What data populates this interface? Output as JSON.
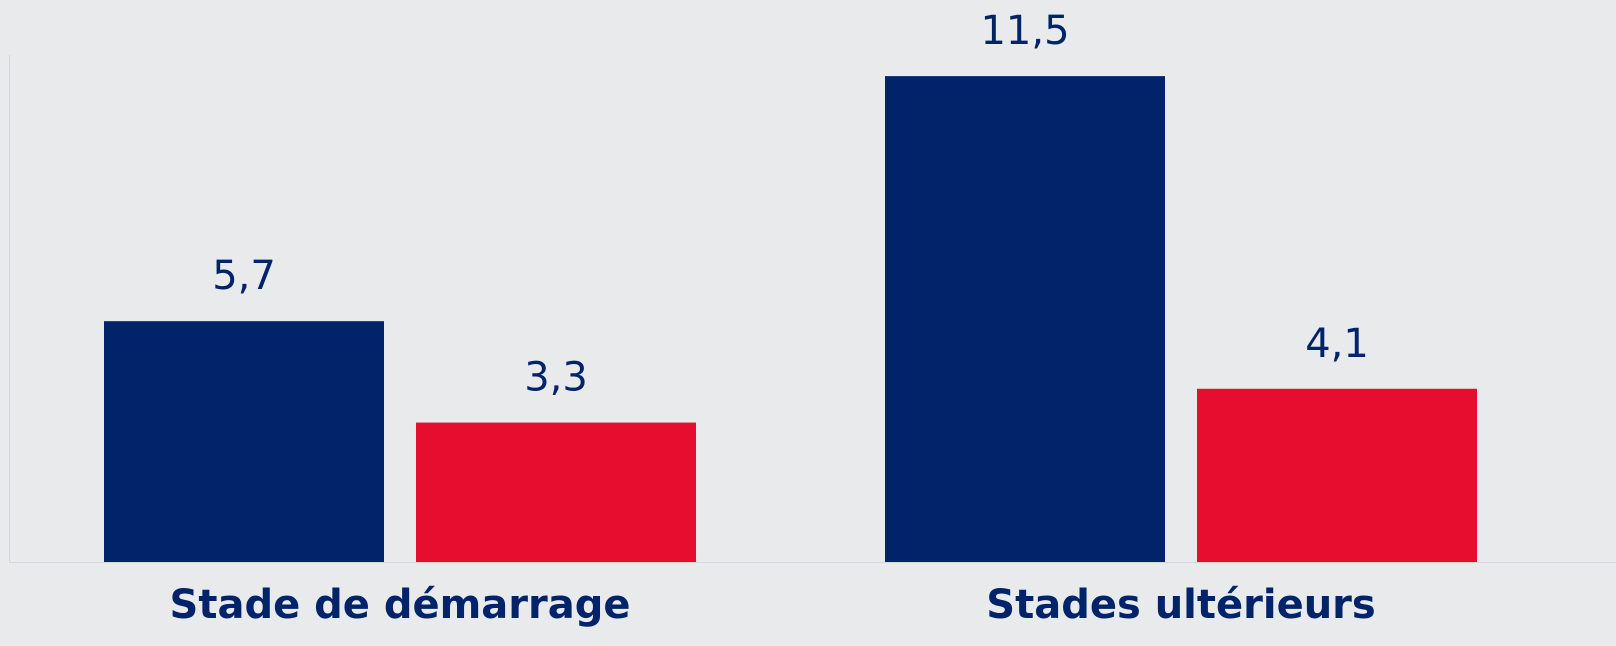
{
  "chart_data": {
    "type": "bar",
    "categories": [
      "Stade de démarrage",
      "Stades ultérieurs"
    ],
    "series": [
      {
        "color": "#00236a",
        "values": [
          5.7,
          11.5
        ],
        "value_labels": [
          "5,7",
          "11,5"
        ]
      },
      {
        "color": "#e60d2e",
        "values": [
          3.3,
          4.1
        ],
        "value_labels": [
          "3,3",
          "4,1"
        ]
      }
    ],
    "ylim": [
      0,
      12
    ]
  }
}
